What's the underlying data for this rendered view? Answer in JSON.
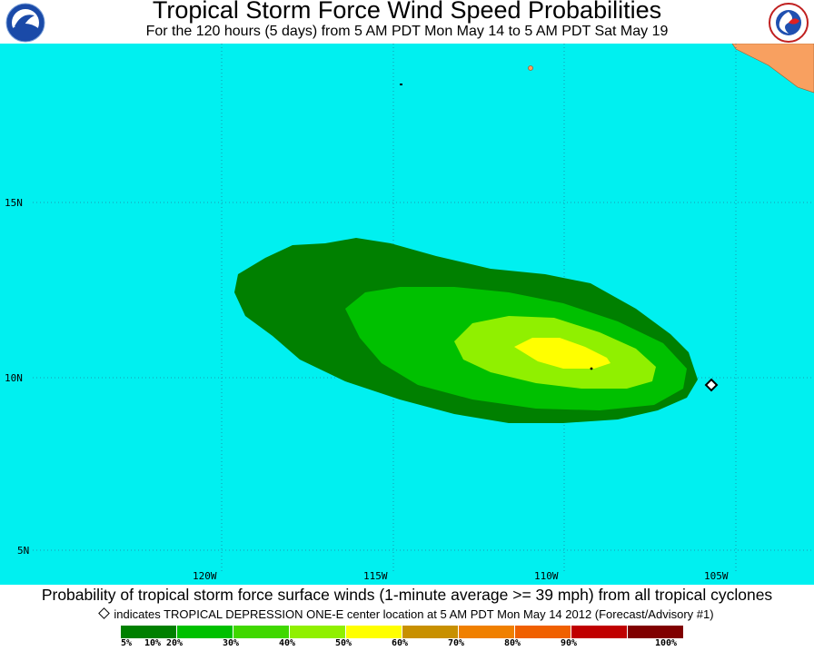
{
  "header": {
    "title": "Tropical Storm Force Wind Speed Probabilities",
    "subtitle": "For the 120 hours (5 days) from 5 AM PDT Mon May 14 to 5 AM PDT Sat May 19",
    "left_logo_text": "NOAA",
    "right_logo_text": "NATIONAL WEATHER SERVICE"
  },
  "map": {
    "ocean_color": "#00f0f0",
    "land_color": "#f8a060",
    "lat_labels": [
      "15N",
      "10N",
      "5N"
    ],
    "lon_labels": [
      "120W",
      "115W",
      "110W",
      "105W"
    ],
    "storm_marker": "diamond",
    "probability_zones": [
      "5%",
      "10%",
      "20%",
      "30%",
      "40%"
    ]
  },
  "footer": {
    "caption": "Probability of tropical storm force surface winds (1-minute average >= 39 mph) from all tropical cyclones",
    "note": "indicates TROPICAL DEPRESSION ONE-E center location at 5 AM PDT Mon May 14 2012 (Forecast/Advisory #1)"
  },
  "legend": {
    "colors": [
      "#008000",
      "#00c000",
      "#40d800",
      "#90f000",
      "#ffff00",
      "#c89000",
      "#f08000",
      "#f06000",
      "#c00000",
      "#800000",
      "#800080"
    ],
    "labels": [
      "5%",
      "10%",
      "20%",
      "30%",
      "40%",
      "50%",
      "60%",
      "70%",
      "80%",
      "90%",
      "100%"
    ]
  }
}
